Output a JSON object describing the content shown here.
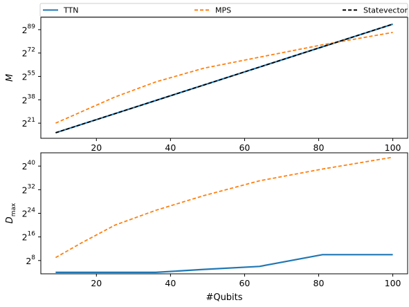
{
  "legend": [
    {
      "name": "TTN",
      "color": "#1f77b4",
      "dash": "solid"
    },
    {
      "name": "MPS",
      "color": "#ff7f0e",
      "dash": "dashed"
    },
    {
      "name": "Statevector",
      "color": "#000000",
      "dash": "dashed"
    }
  ],
  "chart_data": [
    {
      "type": "line",
      "xlabel": "",
      "ylabel": "M",
      "yscale": "log2",
      "xlim": [
        5,
        104
      ],
      "ylim": [
        10,
        98
      ],
      "xticks": [
        20,
        40,
        60,
        80,
        100
      ],
      "yticks": [
        {
          "base": "2",
          "exp": "21",
          "value": 21
        },
        {
          "base": "2",
          "exp": "38",
          "value": 38
        },
        {
          "base": "2",
          "exp": "55",
          "value": 55
        },
        {
          "base": "2",
          "exp": "72",
          "value": 72
        },
        {
          "base": "2",
          "exp": "89",
          "value": 89
        }
      ],
      "series": [
        {
          "name": "TTN",
          "color": "#1f77b4",
          "dash": "solid",
          "x": [
            9,
            100
          ],
          "y": [
            14,
            93
          ]
        },
        {
          "name": "MPS",
          "color": "#ff7f0e",
          "dash": "dashed",
          "x": [
            9,
            25,
            36,
            49,
            64,
            81,
            100
          ],
          "y": [
            21,
            40,
            51,
            61,
            69,
            78,
            87
          ]
        },
        {
          "name": "Statevector",
          "color": "#000000",
          "dash": "dashed",
          "x": [
            9,
            100
          ],
          "y": [
            14,
            93
          ]
        }
      ]
    },
    {
      "type": "line",
      "xlabel": "#Qubits",
      "ylabel": "D",
      "ylabel_sub": "max",
      "yscale": "log2",
      "xlim": [
        5,
        104
      ],
      "ylim": [
        3.5,
        44.5
      ],
      "xticks": [
        20,
        40,
        60,
        80,
        100
      ],
      "yticks": [
        {
          "base": "2",
          "exp": "8",
          "value": 8
        },
        {
          "base": "2",
          "exp": "16",
          "value": 16
        },
        {
          "base": "2",
          "exp": "24",
          "value": 24
        },
        {
          "base": "2",
          "exp": "32",
          "value": 32
        },
        {
          "base": "2",
          "exp": "40",
          "value": 40
        }
      ],
      "series": [
        {
          "name": "TTN",
          "color": "#1f77b4",
          "dash": "solid",
          "x": [
            9,
            16,
            25,
            36,
            49,
            64,
            81,
            100
          ],
          "y": [
            4,
            4,
            4,
            4,
            5,
            6,
            10,
            10
          ]
        },
        {
          "name": "MPS",
          "color": "#ff7f0e",
          "dash": "dashed",
          "x": [
            9,
            16,
            25,
            36,
            49,
            64,
            81,
            100
          ],
          "y": [
            9,
            14,
            20,
            25,
            30,
            35,
            39,
            43
          ]
        }
      ]
    }
  ]
}
